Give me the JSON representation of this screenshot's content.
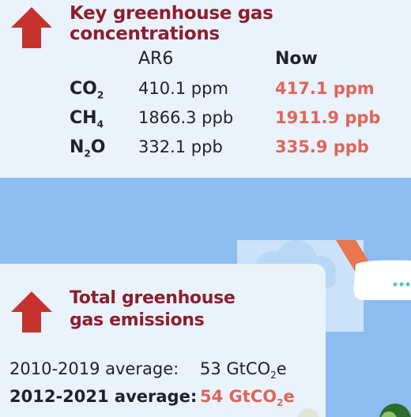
{
  "concentrations": {
    "title": "Key greenhouse gas concentrations",
    "headers": {
      "ar6": "AR6",
      "now": "Now"
    },
    "rows": [
      {
        "gas_base": "CO",
        "gas_sub": "2",
        "ar6": "410.1 ppm",
        "now": "417.1 ppm"
      },
      {
        "gas_base": "CH",
        "gas_sub": "4",
        "ar6": "1866.3 ppb",
        "now": "1911.9 ppb"
      },
      {
        "gas_base": "N",
        "gas_sub": "2",
        "gas_tail": "O",
        "ar6": "332.1 ppb",
        "now": "335.9 ppb"
      }
    ]
  },
  "emissions": {
    "title_line1": "Total greenhouse",
    "title_line2": "gas emissions",
    "rows": [
      {
        "label": "2010-2019 average:",
        "value_pre": "53 GtCO",
        "value_sub": "2",
        "value_post": "e"
      },
      {
        "label": "2012-2021 average:",
        "value_pre": "54 GtCO",
        "value_sub": "2",
        "value_post": "e"
      }
    ]
  },
  "colors": {
    "title": "#8c1f2e",
    "highlight": "#e0655a",
    "arrow": "#c6332f",
    "panel": "#eaf2fb",
    "sky": "#8dbdf0"
  },
  "icons": [
    "up-arrow-icon",
    "up-arrow-icon",
    "airplane-icon",
    "cloud-icon"
  ]
}
